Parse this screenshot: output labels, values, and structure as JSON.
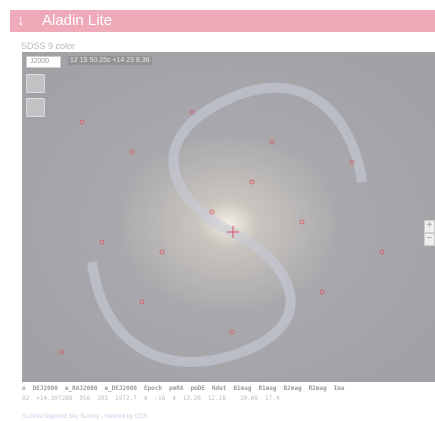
{
  "header": {
    "title": "Aladin Lite"
  },
  "viewer": {
    "survey_label": "SDSS 9 color",
    "frame": "J2000",
    "coordinates": "12 15 50.25s +14 23 8.36"
  },
  "table": {
    "columns": [
      "o",
      "DEJ2000",
      "e_RAJ2000",
      "e_DEJ2000",
      "Epoch",
      "pmRA",
      "pmDE",
      "Ndet",
      "B1mag",
      "R1mag",
      "B2mag",
      "R2mag",
      "Ima"
    ],
    "rows": [
      [
        "92",
        "+14.397288",
        "956",
        "203",
        "1972.7",
        "4",
        "-16",
        "4",
        "13.20",
        "12.18",
        "",
        "10.69",
        "17.4"
      ]
    ]
  },
  "footer": "SLOAN Digitized Sky Survey - Hashed by CDS"
}
